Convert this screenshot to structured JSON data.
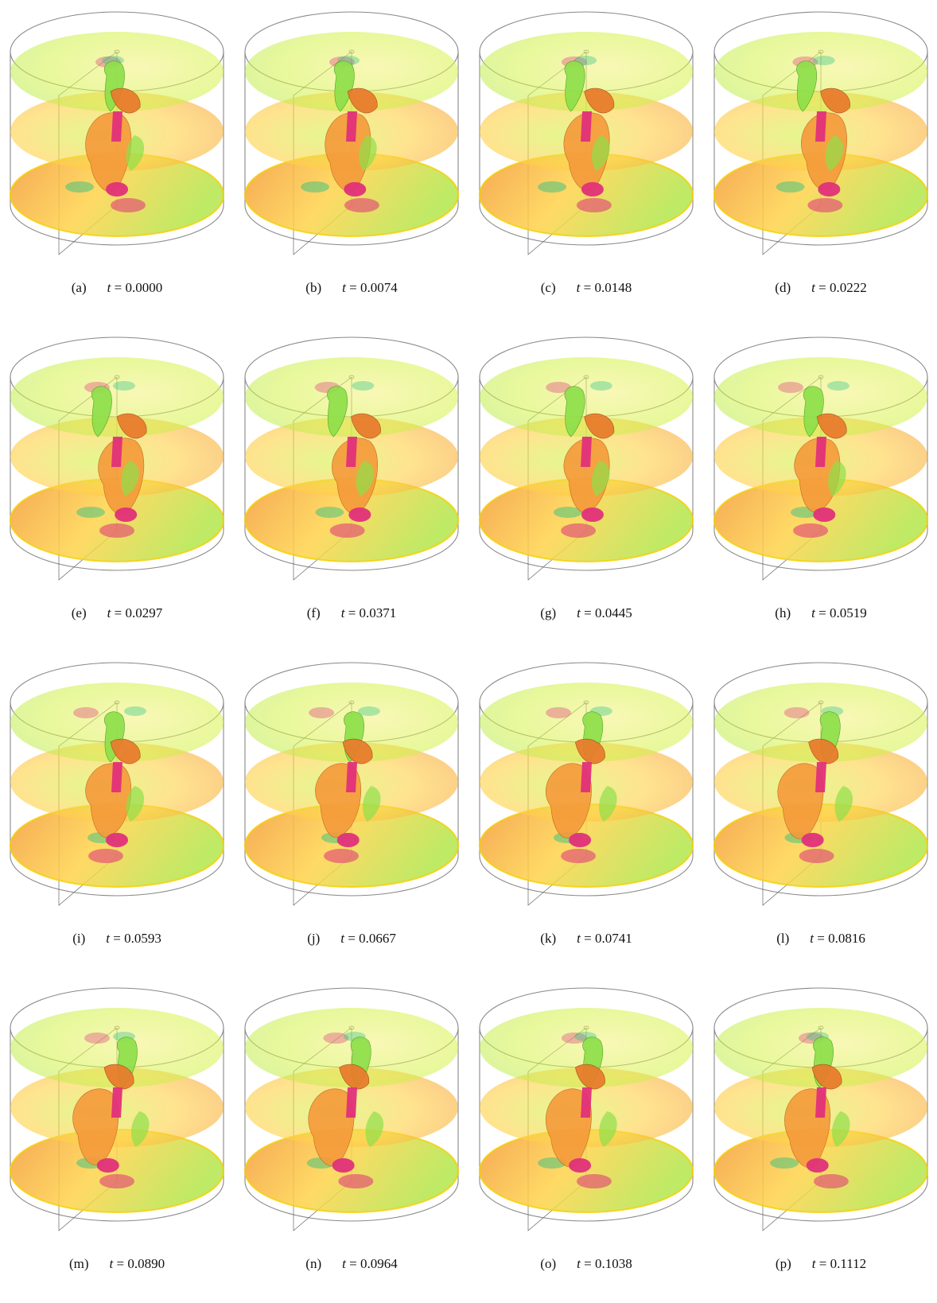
{
  "figure": {
    "panels": [
      {
        "label": "(a)",
        "t_var": "t",
        "eq": "=",
        "t_value": "0.0000"
      },
      {
        "label": "(b)",
        "t_var": "t",
        "eq": "=",
        "t_value": "0.0074"
      },
      {
        "label": "(c)",
        "t_var": "t",
        "eq": "=",
        "t_value": "0.0148"
      },
      {
        "label": "(d)",
        "t_var": "t",
        "eq": "=",
        "t_value": "0.0222"
      },
      {
        "label": "(e)",
        "t_var": "t",
        "eq": "=",
        "t_value": "0.0297"
      },
      {
        "label": "(f)",
        "t_var": "t",
        "eq": "=",
        "t_value": "0.0371"
      },
      {
        "label": "(g)",
        "t_var": "t",
        "eq": "=",
        "t_value": "0.0445"
      },
      {
        "label": "(h)",
        "t_var": "t",
        "eq": "=",
        "t_value": "0.0519"
      },
      {
        "label": "(i)",
        "t_var": "t",
        "eq": "=",
        "t_value": "0.0593"
      },
      {
        "label": "(j)",
        "t_var": "t",
        "eq": "=",
        "t_value": "0.0667"
      },
      {
        "label": "(k)",
        "t_var": "t",
        "eq": "=",
        "t_value": "0.0741"
      },
      {
        "label": "(l)",
        "t_var": "t",
        "eq": "=",
        "t_value": "0.0816"
      },
      {
        "label": "(m)",
        "t_var": "t",
        "eq": "=",
        "t_value": "0.0890"
      },
      {
        "label": "(n)",
        "t_var": "t",
        "eq": "=",
        "t_value": "0.0964"
      },
      {
        "label": "(o)",
        "t_var": "t",
        "eq": "=",
        "t_value": "0.1038"
      },
      {
        "label": "(p)",
        "t_var": "t",
        "eq": "=",
        "t_value": "0.1112"
      }
    ],
    "colors": {
      "positive_vortex": "#e0307a",
      "negative_vortex": "#1fbf86",
      "orange_blob": "#f59a3a",
      "green_blob": "#8ee04a",
      "slice_warm": "#ffd24a",
      "slice_cool": "#d6f24a",
      "outline": "#888888"
    }
  }
}
